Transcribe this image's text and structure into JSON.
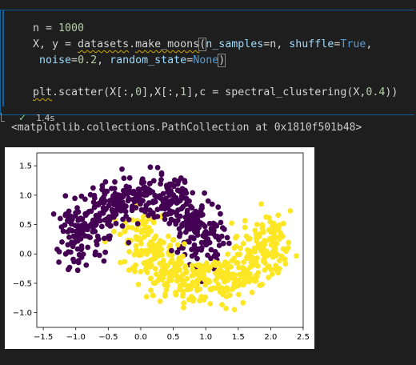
{
  "cell": {
    "code_lines": [
      {
        "tokens": [
          {
            "t": "n = ",
            "c": "kw-var"
          },
          {
            "t": "1000",
            "c": "num"
          }
        ]
      },
      {
        "tokens": [
          {
            "t": "X, y = ",
            "c": "kw-var"
          },
          {
            "t": "datasets",
            "c": "kw-var squiggle"
          },
          {
            "t": ".",
            "c": "kw-var"
          },
          {
            "t": "make_moons",
            "c": "kw-var squiggle"
          },
          {
            "t": "(",
            "c": "kw-var bracket"
          },
          {
            "t": "n_samples",
            "c": "param"
          },
          {
            "t": "=n, ",
            "c": "kw-var"
          },
          {
            "t": "shuffle",
            "c": "param"
          },
          {
            "t": "=",
            "c": "kw-var"
          },
          {
            "t": "True",
            "c": "const"
          },
          {
            "t": ",",
            "c": "kw-var"
          }
        ]
      },
      {
        "tokens": [
          {
            "t": " noise",
            "c": "param"
          },
          {
            "t": "=",
            "c": "kw-var"
          },
          {
            "t": "0.2",
            "c": "num"
          },
          {
            "t": ", ",
            "c": "kw-var"
          },
          {
            "t": "random_state",
            "c": "param"
          },
          {
            "t": "=",
            "c": "kw-var"
          },
          {
            "t": "None",
            "c": "const"
          },
          {
            "t": ")",
            "c": "kw-var bracket"
          }
        ]
      },
      {
        "tokens": [
          {
            "t": "",
            "c": "kw-var"
          }
        ]
      },
      {
        "tokens": [
          {
            "t": "plt",
            "c": "kw-var squiggle"
          },
          {
            "t": ".scatter(X[:,",
            "c": "kw-var"
          },
          {
            "t": "0",
            "c": "num"
          },
          {
            "t": "],X[:,",
            "c": "kw-var"
          },
          {
            "t": "1",
            "c": "num"
          },
          {
            "t": "],c = spectral_clustering(X,",
            "c": "kw-var"
          },
          {
            "t": "0.4",
            "c": "num"
          },
          {
            "t": "))",
            "c": "kw-var"
          }
        ]
      }
    ],
    "exec_time": "1.4s"
  },
  "output": {
    "text": "<matplotlib.collections.PathCollection at 0x1810f501b48>"
  },
  "chart_data": {
    "type": "scatter",
    "xlim": [
      -1.6,
      2.5
    ],
    "ylim": [
      -1.25,
      1.72
    ],
    "xticks": [
      "−1.5",
      "−1.0",
      "−0.5",
      "0.0",
      "0.5",
      "1.0",
      "1.5",
      "2.0",
      "2.5"
    ],
    "xtick_values": [
      -1.5,
      -1.0,
      -0.5,
      0.0,
      0.5,
      1.0,
      1.5,
      2.0,
      2.5
    ],
    "yticks": [
      "1.5",
      "1.0",
      "0.5",
      "0.0",
      "−0.5",
      "−1.0"
    ],
    "ytick_values": [
      1.5,
      1.0,
      0.5,
      0.0,
      -0.5,
      -1.0
    ],
    "series": [
      {
        "cluster": 0,
        "color": "#440154",
        "n_points": 500
      },
      {
        "cluster": 1,
        "color": "#fde725",
        "n_points": 500
      }
    ],
    "generator": {
      "n_samples": 1000,
      "noise": 0.2
    }
  }
}
